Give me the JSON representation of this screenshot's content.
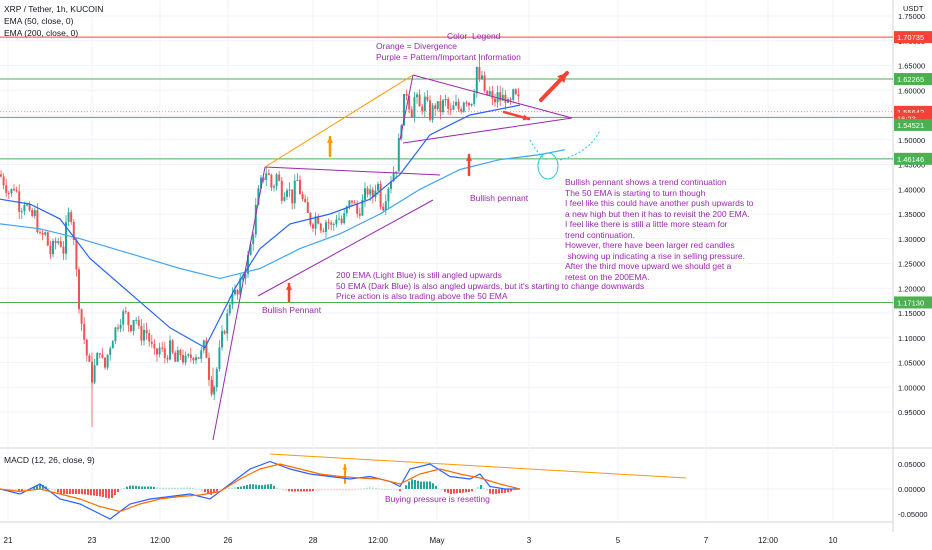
{
  "header": {
    "symbol": "XRP / Tether, 1h, KUCOIN",
    "ema1": "EMA (50, close, 0)",
    "ema2": "EMA (200, close, 0)",
    "currency": "USDT"
  },
  "colors": {
    "up": "#26a69a",
    "down": "#ef5350",
    "ema50": "#2962ff",
    "ema200": "#42a5f5",
    "purple": "#9c27b0",
    "orange": "#ff9800",
    "red_line": "#f44336",
    "green_line": "#4caf50",
    "cyan": "#26c6da"
  },
  "price_axis": {
    "ticks": [
      "1.75000",
      "1.70000",
      "1.65000",
      "1.60000",
      "1.55000",
      "1.50000",
      "1.45000",
      "1.40000",
      "1.35000",
      "1.30000",
      "1.25000",
      "1.20000",
      "1.15000",
      "1.10000",
      "1.05000",
      "1.00000",
      "0.95000"
    ],
    "badges": [
      {
        "text": "1.70735",
        "color": "#f44336",
        "value": 1.70735
      },
      {
        "text": "1.62265",
        "color": "#4caf50",
        "value": 1.62265
      },
      {
        "text": "1.55642",
        "color": "#f44336",
        "value": 1.55642
      },
      {
        "text": "16:23",
        "color": "#f44336",
        "value": 1.5425
      },
      {
        "text": "1.54521",
        "color": "#4caf50",
        "value": 1.53
      },
      {
        "text": "1.46146",
        "color": "#4caf50",
        "value": 1.46146
      },
      {
        "text": "1.17130",
        "color": "#4caf50",
        "value": 1.1713
      }
    ]
  },
  "macd_axis": {
    "ticks": [
      "0.05000",
      "0.00000",
      "-0.05000"
    ]
  },
  "time_axis": {
    "labels": [
      "21",
      "23",
      "12:00",
      "26",
      "28",
      "12:00",
      "May",
      "3",
      "5",
      "7",
      "12:00",
      "10"
    ]
  },
  "annotations": {
    "legend_title": "Color  Legend",
    "legend_lines": "Orange = Divergence\nPurple = Pattern/Important Information",
    "bullish_pennant_right": "Bullish pennant",
    "bullish_pennant_left": "Bullish Pennant",
    "ema_note": "200 EMA (Light Blue) is still angled upwards\n50 EMA (Dark Blue) is also angled upwards, but it's starting to change downwards\nPrice action is also trading above the 50 EMA",
    "right_note": "Bullish pennant shows a trend continuation\nThe 50 EMA is starting to turn though\nI feel like this could have another push upwards to\na new high but then it has to revisit the 200 EMA.\nI feel like there is still a little more steam for\ntrend continuation.\nHowever, there have been larger red candles\n showing up indicating a rise in selling pressure.\nAfter the third move upward we should get a\nretest on the 200EMA.",
    "macd_note": "Buying pressure is resetting",
    "macd_label": "MACD (12, 26, close, 9)"
  },
  "chart_data": {
    "type": "candlestick",
    "instrument": "XRP / Tether, 1h, KUCOIN",
    "y_range": [
      0.93,
      1.77
    ],
    "key_levels": [
      1.70735,
      1.62265,
      1.54521,
      1.46146,
      1.1713
    ],
    "close_path": [
      [
        0,
        1.43
      ],
      [
        5,
        1.41
      ],
      [
        10,
        1.39
      ],
      [
        15,
        1.41
      ],
      [
        20,
        1.36
      ],
      [
        25,
        1.38
      ],
      [
        30,
        1.34
      ],
      [
        35,
        1.35
      ],
      [
        40,
        1.3
      ],
      [
        45,
        1.31
      ],
      [
        50,
        1.27
      ],
      [
        55,
        1.29
      ],
      [
        60,
        1.3
      ],
      [
        63,
        1.27
      ],
      [
        66,
        1.32
      ],
      [
        70,
        1.36
      ],
      [
        73,
        1.33
      ],
      [
        76,
        1.24
      ],
      [
        80,
        1.15
      ],
      [
        84,
        1.1
      ],
      [
        88,
        1.05
      ],
      [
        92,
        1.02
      ],
      [
        96,
        1.05
      ],
      [
        100,
        1.08
      ],
      [
        104,
        1.03
      ],
      [
        108,
        1.07
      ],
      [
        112,
        1.1
      ],
      [
        116,
        1.12
      ],
      [
        120,
        1.14
      ],
      [
        125,
        1.15
      ],
      [
        130,
        1.12
      ],
      [
        135,
        1.15
      ],
      [
        140,
        1.1
      ],
      [
        145,
        1.12
      ],
      [
        150,
        1.09
      ],
      [
        155,
        1.06
      ],
      [
        160,
        1.08
      ],
      [
        165,
        1.06
      ],
      [
        170,
        1.08
      ],
      [
        175,
        1.05
      ],
      [
        180,
        1.07
      ],
      [
        185,
        1.05
      ],
      [
        190,
        1.06
      ],
      [
        195,
        1.07
      ],
      [
        200,
        1.06
      ],
      [
        205,
        1.09
      ],
      [
        210,
        1.01
      ],
      [
        213,
        0.99
      ],
      [
        217,
        1.04
      ],
      [
        222,
        1.1
      ],
      [
        227,
        1.14
      ],
      [
        232,
        1.2
      ],
      [
        237,
        1.18
      ],
      [
        242,
        1.22
      ],
      [
        247,
        1.25
      ],
      [
        252,
        1.3
      ],
      [
        257,
        1.38
      ],
      [
        262,
        1.42
      ],
      [
        267,
        1.44
      ],
      [
        272,
        1.4
      ],
      [
        277,
        1.43
      ],
      [
        282,
        1.39
      ],
      [
        287,
        1.41
      ],
      [
        292,
        1.38
      ],
      [
        297,
        1.42
      ],
      [
        302,
        1.38
      ],
      [
        307,
        1.35
      ],
      [
        312,
        1.33
      ],
      [
        317,
        1.35
      ],
      [
        322,
        1.32
      ],
      [
        327,
        1.34
      ],
      [
        332,
        1.32
      ],
      [
        337,
        1.35
      ],
      [
        342,
        1.33
      ],
      [
        347,
        1.36
      ],
      [
        352,
        1.38
      ],
      [
        357,
        1.35
      ],
      [
        362,
        1.37
      ],
      [
        367,
        1.4
      ],
      [
        372,
        1.38
      ],
      [
        377,
        1.42
      ],
      [
        382,
        1.36
      ],
      [
        387,
        1.4
      ],
      [
        392,
        1.43
      ],
      [
        397,
        1.45
      ],
      [
        400,
        1.52
      ],
      [
        403,
        1.57
      ],
      [
        407,
        1.6
      ],
      [
        411,
        1.55
      ],
      [
        415,
        1.59
      ],
      [
        420,
        1.56
      ],
      [
        425,
        1.58
      ],
      [
        430,
        1.55
      ],
      [
        435,
        1.57
      ],
      [
        440,
        1.56
      ],
      [
        445,
        1.58
      ],
      [
        450,
        1.55
      ],
      [
        455,
        1.57
      ],
      [
        460,
        1.56
      ],
      [
        465,
        1.59
      ],
      [
        470,
        1.57
      ],
      [
        474,
        1.6
      ],
      [
        476,
        1.66
      ],
      [
        479,
        1.61
      ],
      [
        482,
        1.63
      ],
      [
        485,
        1.58
      ],
      [
        489,
        1.6
      ],
      [
        493,
        1.57
      ],
      [
        497,
        1.59
      ],
      [
        501,
        1.58
      ],
      [
        505,
        1.59
      ],
      [
        509,
        1.56
      ],
      [
        513,
        1.59
      ],
      [
        517,
        1.58
      ],
      [
        520,
        1.575
      ]
    ],
    "ema50_path": [
      [
        0,
        1.38
      ],
      [
        30,
        1.37
      ],
      [
        60,
        1.34
      ],
      [
        90,
        1.26
      ],
      [
        130,
        1.19
      ],
      [
        170,
        1.12
      ],
      [
        205,
        1.08
      ],
      [
        235,
        1.2
      ],
      [
        260,
        1.28
      ],
      [
        290,
        1.33
      ],
      [
        330,
        1.35
      ],
      [
        370,
        1.38
      ],
      [
        400,
        1.43
      ],
      [
        430,
        1.51
      ],
      [
        470,
        1.55
      ],
      [
        520,
        1.57
      ]
    ],
    "ema200_path": [
      [
        0,
        1.33
      ],
      [
        40,
        1.32
      ],
      [
        80,
        1.3
      ],
      [
        130,
        1.27
      ],
      [
        180,
        1.24
      ],
      [
        220,
        1.22
      ],
      [
        260,
        1.24
      ],
      [
        300,
        1.28
      ],
      [
        340,
        1.31
      ],
      [
        380,
        1.35
      ],
      [
        420,
        1.4
      ],
      [
        460,
        1.44
      ],
      [
        500,
        1.46
      ],
      [
        540,
        1.47
      ],
      [
        565,
        1.48
      ]
    ],
    "macd_line": [
      [
        0,
        0.0
      ],
      [
        20,
        -0.01
      ],
      [
        40,
        0.01
      ],
      [
        60,
        -0.02
      ],
      [
        80,
        -0.03
      ],
      [
        100,
        -0.05
      ],
      [
        110,
        -0.06
      ],
      [
        130,
        -0.03
      ],
      [
        150,
        -0.02
      ],
      [
        170,
        -0.015
      ],
      [
        190,
        -0.01
      ],
      [
        210,
        -0.02
      ],
      [
        230,
        0.01
      ],
      [
        250,
        0.04
      ],
      [
        270,
        0.055
      ],
      [
        290,
        0.04
      ],
      [
        310,
        0.03
      ],
      [
        330,
        0.025
      ],
      [
        350,
        0.02
      ],
      [
        370,
        0.025
      ],
      [
        390,
        0.015
      ],
      [
        400,
        0.005
      ],
      [
        410,
        0.04
      ],
      [
        430,
        0.05
      ],
      [
        450,
        0.025
      ],
      [
        470,
        0.02
      ],
      [
        480,
        0.03
      ],
      [
        490,
        0.005
      ],
      [
        505,
        0.0
      ],
      [
        520,
        0.0
      ]
    ],
    "signal_line": [
      [
        0,
        0.0
      ],
      [
        20,
        -0.005
      ],
      [
        40,
        0.0
      ],
      [
        60,
        -0.01
      ],
      [
        80,
        -0.02
      ],
      [
        100,
        -0.035
      ],
      [
        120,
        -0.045
      ],
      [
        140,
        -0.03
      ],
      [
        160,
        -0.02
      ],
      [
        180,
        -0.015
      ],
      [
        200,
        -0.012
      ],
      [
        220,
        -0.005
      ],
      [
        240,
        0.02
      ],
      [
        260,
        0.04
      ],
      [
        280,
        0.05
      ],
      [
        300,
        0.04
      ],
      [
        320,
        0.03
      ],
      [
        340,
        0.025
      ],
      [
        360,
        0.022
      ],
      [
        380,
        0.02
      ],
      [
        400,
        0.01
      ],
      [
        420,
        0.03
      ],
      [
        440,
        0.04
      ],
      [
        460,
        0.03
      ],
      [
        480,
        0.022
      ],
      [
        500,
        0.01
      ],
      [
        520,
        0.0
      ]
    ],
    "macd_range": [
      -0.075,
      0.075
    ]
  }
}
